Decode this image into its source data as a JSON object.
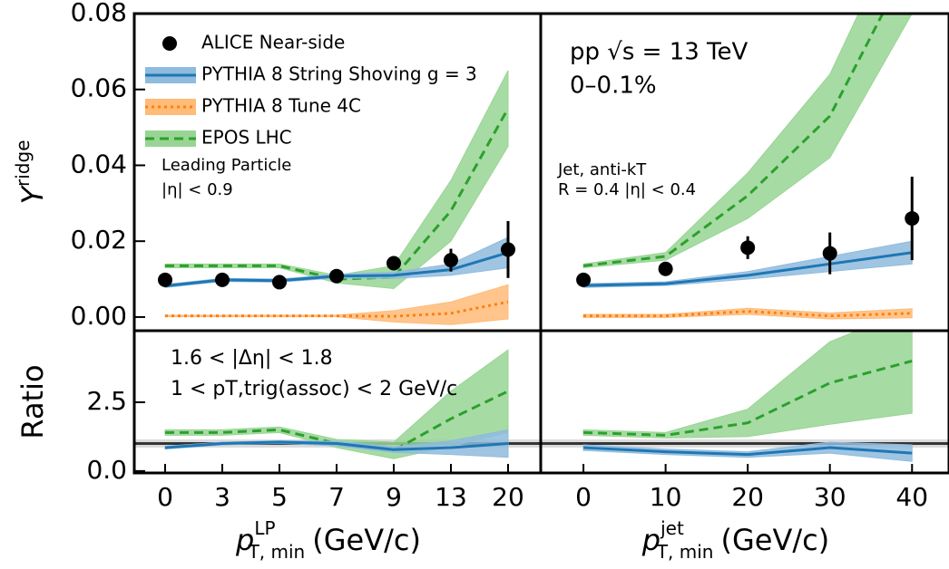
{
  "chart_data": [
    {
      "type": "line",
      "ylim": [
        -0.0036,
        0.08
      ],
      "yticks": [
        {
          "value": 0,
          "label": "0.00"
        },
        0.02,
        0.04,
        0.06,
        0.08
      ],
      "y_label": {
        "base": "Y",
        "sup": "ridge"
      },
      "annotations": [
        "Leading Particle",
        "|η| < 0.9"
      ],
      "series": [
        {
          "name": "PYTHIA 8 Tune 4C",
          "style": "band",
          "dash": "dotted",
          "color": "#ff7f0e",
          "band_color": "#ffbb78",
          "values": [
            0.0003,
            0.0003,
            0.0003,
            0.0003,
            0.0002,
            0.001,
            0.004
          ],
          "errors": [
            0.0002,
            0.0002,
            0.0002,
            0.0002,
            0.0015,
            0.003,
            0.0045
          ]
        },
        {
          "name": "EPOS LHC",
          "style": "band",
          "dash": "dashed",
          "color": "#2ca02c",
          "band_color": "#98d594",
          "values": [
            0.0135,
            0.0135,
            0.0135,
            0.01,
            0.0105,
            0.028,
            0.055
          ],
          "errors": [
            0.0005,
            0.0005,
            0.0005,
            0.001,
            0.003,
            0.008,
            0.01
          ]
        },
        {
          "name": "PYTHIA 8 String Shoving g = 3",
          "style": "band",
          "dash": "solid",
          "color": "#1f77b4",
          "band_color": "#8fbbdd",
          "values": [
            0.0082,
            0.0098,
            0.0096,
            0.0108,
            0.011,
            0.0125,
            0.017
          ],
          "errors": [
            0.0004,
            0.0004,
            0.0004,
            0.0005,
            0.0008,
            0.0015,
            0.004
          ]
        },
        {
          "name": "ALICE Near-side",
          "style": "points",
          "color": "#000000",
          "values": [
            0.0098,
            0.0098,
            0.0092,
            0.0108,
            0.0142,
            0.015,
            0.0178
          ],
          "errors": [
            0.0005,
            0.0005,
            0.0005,
            0.0006,
            0.0008,
            0.003,
            0.0075
          ]
        }
      ]
    },
    {
      "type": "line",
      "ylim": [
        -0.0036,
        0.08
      ],
      "xlim": [
        -5.2,
        44.5
      ],
      "x": [
        0,
        10,
        20,
        30,
        40
      ],
      "annotations": [
        "pp √s = 13 TeV",
        "0–0.1%",
        "Jet, anti-kT",
        "R = 0.4 |η| < 0.4"
      ],
      "series": [
        {
          "style": "band",
          "dash": "dotted",
          "color": "#ff7f0e",
          "band_color": "#ffbb78",
          "values": [
            0.0003,
            0.0003,
            0.0015,
            0.0003,
            0.001
          ],
          "errors": [
            0.0004,
            0.0004,
            0.0008,
            0.0008,
            0.0012
          ]
        },
        {
          "style": "band",
          "dash": "dashed",
          "color": "#2ca02c",
          "band_color": "#98d594",
          "values": [
            0.0135,
            0.016,
            0.032,
            0.053,
            0.095
          ],
          "errors": [
            0.0005,
            0.001,
            0.006,
            0.011,
            0.015
          ]
        },
        {
          "style": "band",
          "dash": "solid",
          "color": "#1f77b4",
          "band_color": "#8fbbdd",
          "values": [
            0.0083,
            0.0088,
            0.011,
            0.014,
            0.017
          ],
          "errors": [
            0.0005,
            0.0005,
            0.001,
            0.002,
            0.003
          ]
        },
        {
          "style": "points",
          "color": "#000000",
          "values": [
            0.0098,
            0.0127,
            0.0183,
            0.0168,
            0.026
          ],
          "errors": [
            0.0005,
            0.001,
            0.003,
            0.0055,
            0.011
          ]
        }
      ]
    },
    {
      "type": "line",
      "ylim": [
        -0.07,
        5.1
      ],
      "yticks": [
        {
          "value": 0,
          "label": "0.0"
        },
        2.5
      ],
      "hline": 1,
      "categories": [
        "0",
        "3",
        "5",
        "7",
        "9",
        "13",
        "20"
      ],
      "y_label": {
        "base": "Ratio"
      },
      "x_label": {
        "base": "p",
        "sup": "LP",
        "sub": "T, min",
        "unit": "(GeV/c)"
      },
      "annotations": [
        "1.6 < |Δη| < 1.8",
        "1 < pT,trig(assoc) < 2 GeV/c"
      ],
      "series": [
        {
          "style": "band",
          "dash": "dashed",
          "color": "#2ca02c",
          "band_color": "#98d594",
          "values": [
            1.4,
            1.4,
            1.5,
            1.0,
            0.75,
            1.9,
            2.9
          ],
          "errors": [
            0.1,
            0.1,
            0.1,
            0.15,
            0.3,
            1.0,
            1.5
          ]
        },
        {
          "style": "band",
          "dash": "solid",
          "color": "#1f77b4",
          "band_color": "#8fbbdd",
          "values": [
            0.85,
            1.0,
            1.05,
            1.0,
            0.78,
            0.85,
            1.0
          ],
          "errors": [
            0.05,
            0.05,
            0.05,
            0.08,
            0.1,
            0.25,
            0.5
          ]
        }
      ]
    },
    {
      "type": "line",
      "ylim": [
        -0.07,
        5.1
      ],
      "xlim": [
        -5.2,
        44.5
      ],
      "x": [
        0,
        10,
        20,
        30,
        40
      ],
      "xticks": [
        0,
        10,
        20,
        30,
        40
      ],
      "hline": 1,
      "x_label": {
        "base": "p",
        "sup": "jet",
        "sub": "T, min",
        "unit": "(GeV/c)"
      },
      "series": [
        {
          "style": "band",
          "dash": "dashed",
          "color": "#2ca02c",
          "band_color": "#98d594",
          "values": [
            1.4,
            1.3,
            1.75,
            3.2,
            4.0
          ],
          "errors": [
            0.1,
            0.1,
            0.5,
            1.5,
            1.9
          ]
        },
        {
          "style": "band",
          "dash": "solid",
          "color": "#1f77b4",
          "band_color": "#8fbbdd",
          "values": [
            0.85,
            0.7,
            0.6,
            0.85,
            0.65
          ],
          "errors": [
            0.1,
            0.1,
            0.1,
            0.2,
            0.3
          ]
        }
      ]
    }
  ]
}
